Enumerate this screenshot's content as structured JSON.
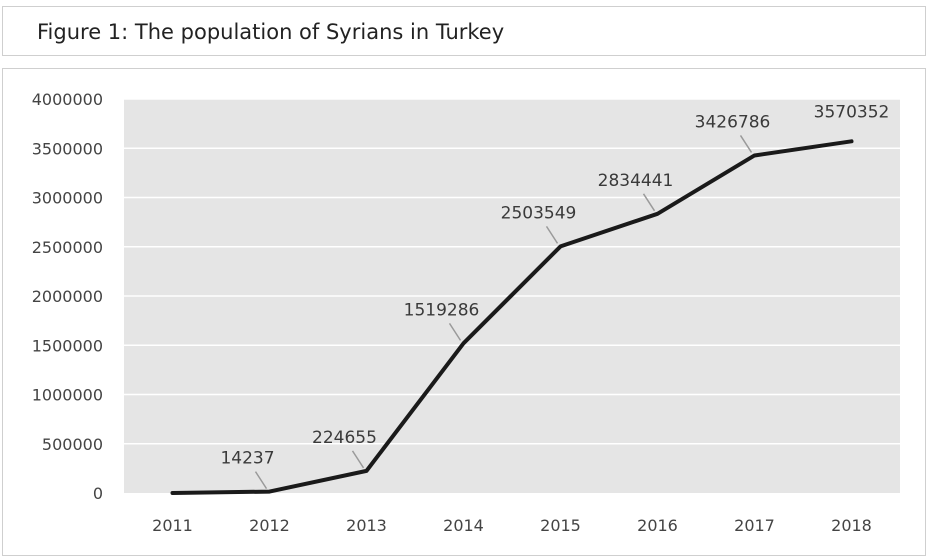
{
  "chart_data": {
    "type": "line",
    "title": "Figure 1: The population of Syrians in Turkey",
    "xlabel": "",
    "ylabel": "",
    "categories": [
      "2011",
      "2012",
      "2013",
      "2014",
      "2015",
      "2016",
      "2017",
      "2018"
    ],
    "values": [
      0,
      14237,
      224655,
      1519286,
      2503549,
      2834441,
      3426786,
      3570352
    ],
    "data_labels": [
      "",
      "14237",
      "224655",
      "1519286",
      "2503549",
      "2834441",
      "3426786",
      "3570352"
    ],
    "ylim": [
      0,
      4000000
    ],
    "yticks": [
      0,
      500000,
      1000000,
      1500000,
      2000000,
      2500000,
      3000000,
      3500000,
      4000000
    ],
    "ytick_labels": [
      "0",
      "500000",
      "1000000",
      "1500000",
      "2000000",
      "2500000",
      "3000000",
      "3500000",
      "4000000"
    ],
    "grid": true,
    "legend": "none",
    "colors": {
      "line": "#1a1a1a",
      "plot_bg": "#e5e5e5",
      "grid": "#ffffff",
      "leader": "#9a9a9a"
    }
  }
}
